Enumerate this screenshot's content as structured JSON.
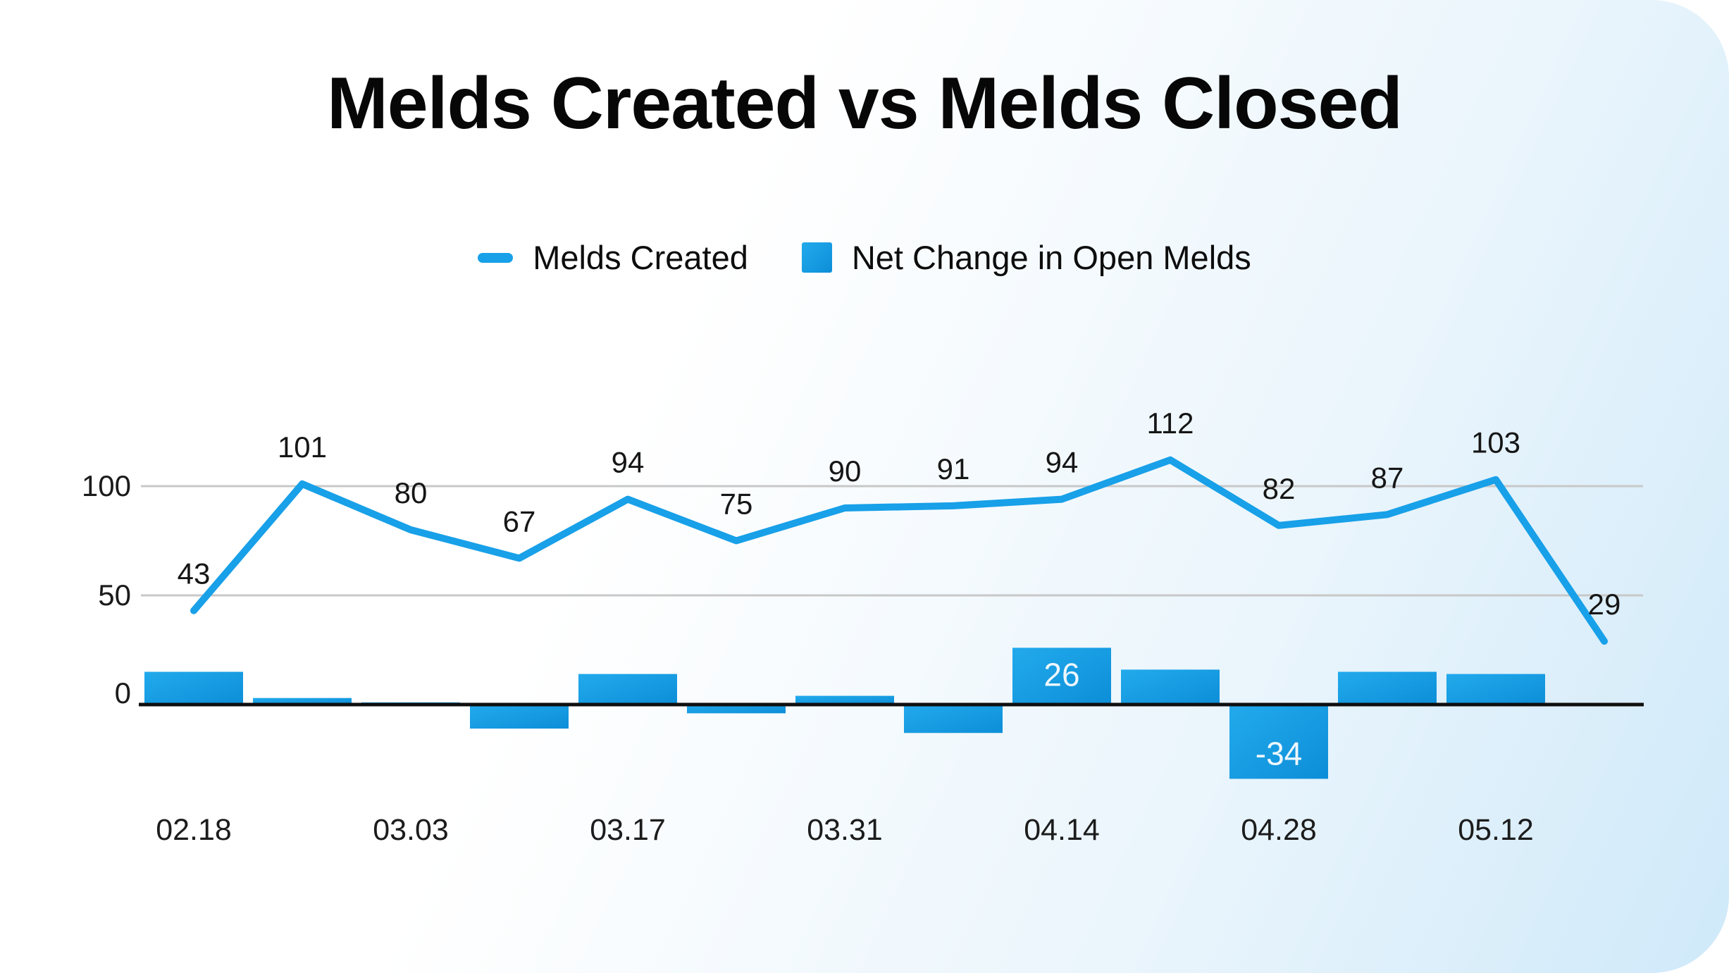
{
  "title": "Melds Created vs Melds Closed",
  "legend": [
    {
      "label": "Melds Created",
      "swatch": "line-dash",
      "color": "#18a0e8"
    },
    {
      "label": "Net Change in Open Melds",
      "swatch": "square",
      "color": "#14a0e4"
    }
  ],
  "chart_data": {
    "type": "combo",
    "x_tick_labels": [
      "02.18",
      "03.03",
      "03.17",
      "03.31",
      "04.14",
      "04.28",
      "05.12"
    ],
    "x_tick_point_indices": [
      0,
      2,
      4,
      6,
      8,
      10,
      12
    ],
    "y_ticks": [
      100,
      50,
      0
    ],
    "gridlines_at": [
      100,
      50
    ],
    "ylim": [
      -40,
      120
    ],
    "legend_position": "top",
    "grid": "horizontal-only",
    "series": [
      {
        "name": "Melds Created",
        "type": "line",
        "values": [
          43,
          101,
          80,
          67,
          94,
          75,
          90,
          91,
          94,
          112,
          82,
          87,
          103,
          29
        ],
        "point_labels_visible": true
      },
      {
        "name": "Net Change in Open Melds",
        "type": "bar",
        "values": [
          15,
          3,
          1,
          -11,
          14,
          -4,
          4,
          -13,
          26,
          16,
          -34,
          15,
          14,
          0
        ],
        "data_labels": [
          {
            "index": 8,
            "label": "26"
          },
          {
            "index": 10,
            "label": "-34"
          }
        ]
      }
    ],
    "colors": {
      "line": "#18a0e8",
      "bar_gradient_start": "#22aaec",
      "bar_gradient_end": "#0d8ed8",
      "grid": "#c8c8c8",
      "zero_axis": "#0f0f0f",
      "label_text": "#161616",
      "bar_label_text": "#eef7fd"
    }
  }
}
